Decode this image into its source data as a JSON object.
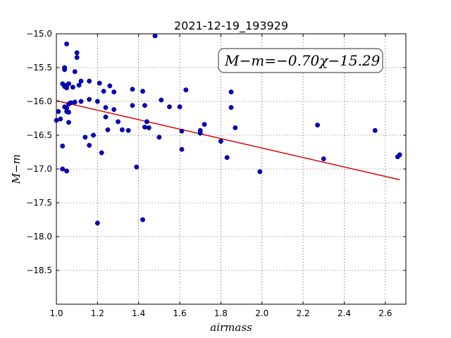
{
  "chart_data": {
    "type": "scatter",
    "title": "2021-12-19_193929",
    "xlabel": "airmass",
    "ylabel": "M−m",
    "xlim": [
      1.0,
      2.7
    ],
    "ylim": [
      -15.0,
      -19.0
    ],
    "y_inverted": true,
    "grid": true,
    "x_ticks": [
      1.0,
      1.2,
      1.4,
      1.6,
      1.8,
      2.0,
      2.2,
      2.4,
      2.6
    ],
    "x_tick_labels": [
      "1.0",
      "1.2",
      "1.4",
      "1.6",
      "1.8",
      "2.0",
      "2.2",
      "2.4",
      "2.6"
    ],
    "y_ticks": [
      -15.0,
      -15.5,
      -16.0,
      -16.5,
      -17.0,
      -17.5,
      -18.0,
      -18.5
    ],
    "y_tick_labels": [
      "−15.0",
      "−15.5",
      "−16.0",
      "−16.5",
      "−17.0",
      "−17.5",
      "−18.0",
      "−18.5"
    ],
    "annotation": "M−m=−0.70χ−15.29",
    "point_color": "#0000cc",
    "fit_color": "#dd0000",
    "fit": {
      "slope": -0.7,
      "intercept": -15.29,
      "x_range": [
        1.0,
        2.67
      ]
    },
    "points": [
      [
        1.0,
        -16.28
      ],
      [
        1.01,
        -16.15
      ],
      [
        1.02,
        -16.26
      ],
      [
        1.03,
        -16.66
      ],
      [
        1.03,
        -17.0
      ],
      [
        1.03,
        -15.74
      ],
      [
        1.04,
        -15.78
      ],
      [
        1.04,
        -15.5
      ],
      [
        1.04,
        -15.53
      ],
      [
        1.04,
        -16.08
      ],
      [
        1.05,
        -15.76
      ],
      [
        1.05,
        -15.8
      ],
      [
        1.05,
        -16.1
      ],
      [
        1.05,
        -16.15
      ],
      [
        1.05,
        -15.15
      ],
      [
        1.06,
        -15.74
      ],
      [
        1.06,
        -16.04
      ],
      [
        1.06,
        -16.16
      ],
      [
        1.06,
        -16.31
      ],
      [
        1.05,
        -17.03
      ],
      [
        1.07,
        -16.02
      ],
      [
        1.08,
        -15.79
      ],
      [
        1.09,
        -15.56
      ],
      [
        1.09,
        -16.01
      ],
      [
        1.1,
        -15.28
      ],
      [
        1.1,
        -15.35
      ],
      [
        1.11,
        -15.76
      ],
      [
        1.12,
        -15.7
      ],
      [
        1.12,
        -16.0
      ],
      [
        1.14,
        -16.53
      ],
      [
        1.16,
        -15.7
      ],
      [
        1.16,
        -15.97
      ],
      [
        1.16,
        -16.65
      ],
      [
        1.18,
        -16.5
      ],
      [
        1.2,
        -16.0
      ],
      [
        1.21,
        -15.73
      ],
      [
        1.22,
        -16.76
      ],
      [
        1.23,
        -15.85
      ],
      [
        1.24,
        -16.09
      ],
      [
        1.24,
        -16.23
      ],
      [
        1.25,
        -16.42
      ],
      [
        1.26,
        -15.77
      ],
      [
        1.28,
        -15.86
      ],
      [
        1.28,
        -16.12
      ],
      [
        1.3,
        -16.3
      ],
      [
        1.32,
        -16.42
      ],
      [
        1.35,
        -16.43
      ],
      [
        1.37,
        -15.82
      ],
      [
        1.37,
        -16.06
      ],
      [
        1.39,
        -16.97
      ],
      [
        1.42,
        -15.85
      ],
      [
        1.43,
        -16.06
      ],
      [
        1.43,
        -16.38
      ],
      [
        1.44,
        -16.3
      ],
      [
        1.45,
        -16.39
      ],
      [
        1.48,
        -15.03
      ],
      [
        1.5,
        -16.53
      ],
      [
        1.51,
        -15.98
      ],
      [
        1.55,
        -16.08
      ],
      [
        1.6,
        -16.08
      ],
      [
        1.61,
        -16.44
      ],
      [
        1.61,
        -16.71
      ],
      [
        1.63,
        -15.83
      ],
      [
        1.7,
        -16.43
      ],
      [
        1.7,
        -16.47
      ],
      [
        1.72,
        -16.34
      ],
      [
        1.8,
        -16.59
      ],
      [
        1.83,
        -16.83
      ],
      [
        1.85,
        -15.86
      ],
      [
        1.85,
        -16.09
      ],
      [
        1.87,
        -16.39
      ],
      [
        1.2,
        -17.8
      ],
      [
        1.42,
        -17.75
      ],
      [
        1.99,
        -17.04
      ],
      [
        2.27,
        -16.35
      ],
      [
        2.3,
        -16.85
      ],
      [
        2.55,
        -16.43
      ],
      [
        2.66,
        -16.82
      ],
      [
        2.67,
        -16.79
      ]
    ]
  }
}
